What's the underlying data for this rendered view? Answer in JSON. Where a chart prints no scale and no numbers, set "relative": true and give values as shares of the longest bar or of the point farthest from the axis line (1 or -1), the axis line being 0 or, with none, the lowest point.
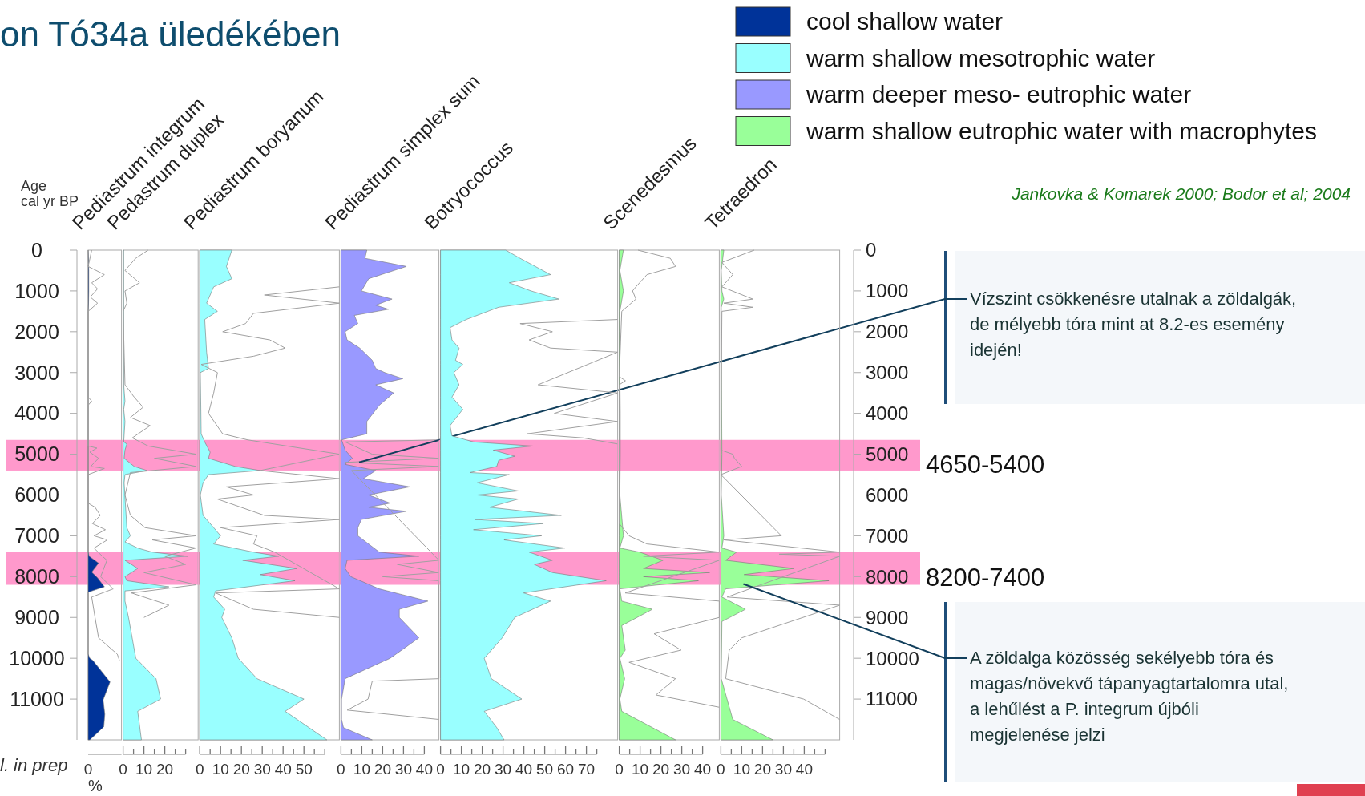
{
  "chart_data": [
    {
      "type": "area",
      "orientation": "horizontal",
      "title": "Pediastrum integrum",
      "ylabel": "Age cal yr BP",
      "xlabel": "%",
      "legend": "top right",
      "ylim": [
        12000,
        0
      ],
      "yticks": [
        0,
        1000,
        2000,
        3000,
        4000,
        5000,
        6000,
        7000,
        8000,
        9000,
        10000,
        11000
      ],
      "relative": true,
      "annotations": [
        "on Tó34a üledékében",
        "l. in prep",
        "Jankovka & Komarek 2000; Bodor et al; 2004",
        "0"
      ],
      "bands": [
        {
          "axis": "y",
          "from": 4650,
          "to": 5400,
          "color": "#ff99cc"
        },
        {
          "axis": "y",
          "from": 7400,
          "to": 8200,
          "color": "#ff99cc"
        }
      ],
      "series": [
        {
          "name": "cool shallow water",
          "color": "#003399",
          "x": [
            0,
            500,
            1000,
            1300,
            1500,
            7400,
            7500,
            7670,
            7890,
            8030,
            8250,
            8380,
            9900,
            10000,
            10050,
            10580,
            11020,
            11370,
            11680,
            12000
          ],
          "values": [
            0,
            0.02,
            0.02,
            0.013,
            0,
            0,
            0.033,
            0.333,
            0.113,
            0.3,
            0.52,
            0,
            0,
            0.053,
            0.147,
            0.7,
            0.48,
            0.533,
            0.5,
            0.053
          ]
        },
        {
          "type": "line",
          "color": "#a0a0a0",
          "x": [
            0,
            400,
            600,
            800,
            950,
            1150,
            1300,
            1500,
            3600,
            3700,
            3800,
            4800,
            4850,
            4950,
            5100,
            5300,
            5350,
            5500,
            6200,
            6300,
            6500,
            6700,
            6850,
            7000,
            7100,
            7300,
            7450,
            7600,
            8000,
            8300,
            8500,
            9000,
            9500,
            9900,
            10050
          ],
          "values": [
            0.113,
            0,
            0.52,
            0.113,
            0.3,
            0.067,
            0.3,
            0,
            0,
            0.113,
            0,
            0,
            0.28,
            0.053,
            0.333,
            0.08,
            0.52,
            0,
            0,
            0.22,
            0.387,
            0.133,
            0.553,
            0.187,
            0.613,
            0.187,
            0.387,
            0.6,
            0.4,
            0.8,
            0.113,
            0.22,
            0.333,
            0.933,
            1
          ]
        }
      ]
    },
    {
      "type": "area",
      "orientation": "horizontal",
      "title": "Pedastrum duplex",
      "tick_labels": "x",
      "ylim": [
        12000,
        0
      ],
      "xlim": [
        0,
        36
      ],
      "xticks": [
        0,
        {
          "value": 5,
          "label": null
        },
        10,
        {
          "value": 15,
          "label": null
        },
        20,
        {
          "value": 25,
          "label": null
        },
        {
          "value": 30,
          "label": null
        }
      ],
      "bands": [
        {
          "axis": "y",
          "from": 4650,
          "to": 5400,
          "color": "#ff99cc"
        },
        {
          "axis": "y",
          "from": 7400,
          "to": 8200,
          "color": "#ff99cc"
        }
      ],
      "series": [
        {
          "name": "warm shallow mesotrophic water",
          "color": "#99ffff",
          "x": [
            0,
            3300,
            3700,
            3900,
            4200,
            4700,
            4750,
            4900,
            5100,
            5300,
            5400,
            5500,
            5700,
            6800,
            7000,
            7150,
            7300,
            7400,
            7500,
            7600,
            7800,
            8000,
            8100,
            8250,
            8350,
            8600,
            9000,
            10000,
            10500,
            11000,
            11300,
            12000
          ],
          "values": [
            0.3,
            0.3,
            0.9,
            0.3,
            0.9,
            0.3,
            1.8,
            0.9,
            0.5,
            5.3,
            11.4,
            0.9,
            0.5,
            1.8,
            3.5,
            0.9,
            7,
            14,
            31,
            0.9,
            7,
            0.9,
            1.8,
            22,
            0.9,
            0.9,
            2.6,
            6.1,
            15.8,
            18,
            7,
            8.8
          ]
        },
        {
          "type": "line",
          "color": "#a0a0a0",
          "x": [
            0,
            200,
            500,
            800,
            1000,
            1300,
            1500,
            3300,
            3600,
            3850,
            4100,
            4300,
            4600,
            4800,
            5000,
            5100,
            5300,
            5450,
            6000,
            6500,
            6800,
            7000,
            7100,
            7300,
            7500,
            7700,
            7900,
            8200,
            8400,
            8700,
            9000
          ],
          "values": [
            12,
            6,
            0.9,
            7.9,
            0.9,
            1.8,
            0,
            0.9,
            5.3,
            9.6,
            3.5,
            13,
            4.4,
            12,
            35,
            15,
            35,
            3.5,
            0.9,
            3.5,
            10.5,
            35,
            14,
            35,
            20,
            30,
            10,
            35,
            4,
            22,
            10
          ]
        }
      ]
    },
    {
      "type": "area",
      "orientation": "horizontal",
      "title": "Pediastrum boryanum",
      "tick_labels": "x",
      "ylim": [
        12000,
        0
      ],
      "xlim": [
        0,
        67
      ],
      "xticks": [
        0,
        {
          "value": 5,
          "label": null
        },
        10,
        {
          "value": 15,
          "label": null
        },
        20,
        {
          "value": 25,
          "label": null
        },
        30,
        {
          "value": 35,
          "label": null
        },
        40,
        {
          "value": 45,
          "label": null
        },
        50,
        {
          "value": 55,
          "label": null
        },
        {
          "value": 60,
          "label": null
        }
      ],
      "bands": [
        {
          "axis": "y",
          "from": 4650,
          "to": 5400,
          "color": "#ff99cc"
        },
        {
          "axis": "y",
          "from": 7400,
          "to": 8200,
          "color": "#ff99cc"
        }
      ],
      "series": [
        {
          "color": "#99ffff",
          "x": [
            0,
            400,
            700,
            900,
            1300,
            1500,
            1700,
            2500,
            2900,
            3000,
            4500,
            4700,
            4950,
            5100,
            5300,
            5400,
            5500,
            5700,
            6000,
            6500,
            6800,
            7000,
            7200,
            7400,
            7500,
            7600,
            7800,
            7950,
            8100,
            8350,
            8500,
            8800,
            9000,
            9500,
            10000,
            10500,
            11000,
            11300,
            12000
          ],
          "values": [
            15.4,
            12.8,
            15.4,
            6.7,
            3.3,
            8.5,
            2.4,
            3.3,
            4.2,
            0.3,
            0.7,
            2.4,
            5,
            4.2,
            17,
            29,
            4.2,
            1.6,
            0.3,
            1.6,
            6.7,
            10,
            6.7,
            25.8,
            37.9,
            20.6,
            46.5,
            29,
            45.7,
            7.6,
            6.7,
            12,
            10.6,
            15.4,
            18.5,
            27.5,
            50,
            41,
            61
          ]
        },
        {
          "type": "line",
          "color": "#a0a0a0",
          "x": [
            900,
            1100,
            1300,
            1550,
            1800,
            2000,
            2200,
            2400,
            2600,
            2800,
            3000,
            3500,
            4000,
            4500,
            4650,
            5000,
            5400,
            5600,
            5800,
            6000,
            6100,
            6500,
            6600,
            6800,
            7000,
            7200,
            7400,
            8300,
            8400,
            8800,
            9000
          ],
          "values": [
            67,
            31,
            67,
            25.8,
            22,
            11,
            33.6,
            41,
            25.8,
            0.7,
            8.5,
            6.7,
            4.2,
            11,
            23,
            67,
            29,
            67,
            12.8,
            25.8,
            8.5,
            31,
            67,
            10,
            27.5,
            25.8,
            36,
            67,
            7.6,
            25.8,
            67
          ]
        }
      ]
    },
    {
      "type": "area",
      "orientation": "horizontal",
      "title": "Pediastrum simplex sum",
      "tick_labels": "x",
      "ylim": [
        12000,
        0
      ],
      "xlim": [
        0,
        47
      ],
      "xticks": [
        0,
        {
          "value": 5,
          "label": null
        },
        10,
        {
          "value": 15,
          "label": null
        },
        20,
        {
          "value": 25,
          "label": null
        },
        30,
        {
          "value": 35,
          "label": null
        },
        40
      ],
      "annotations": [
        {
          "text": "Vízszint csökkenésre utalnak a zöldalgák, de mélyebb tóra mint at 8.2-es esemény idején!",
          "x": 8.7,
          "y": 5200
        }
      ],
      "bands": [
        {
          "axis": "y",
          "from": 4650,
          "to": 5400,
          "color": "#ff99cc"
        },
        {
          "axis": "y",
          "from": 7400,
          "to": 8200,
          "color": "#ff99cc"
        }
      ],
      "series": [
        {
          "name": "warm deeper meso- eutrophic water",
          "color": "#9999ff",
          "x": [
            0,
            200,
            400,
            700,
            1000,
            1200,
            1350,
            1450,
            1600,
            1800,
            2000,
            2200,
            2400,
            2700,
            2900,
            3000,
            3150,
            3300,
            3500,
            3800,
            4200,
            4500,
            4650,
            4900,
            5100,
            5250,
            5400,
            5600,
            5800,
            6000,
            6200,
            6300,
            6400,
            6600,
            6800,
            7000,
            7400,
            7500,
            7600,
            7800,
            8000,
            8300,
            8600,
            8800,
            9000,
            9500,
            10000,
            10500,
            11000,
            11500,
            11700,
            12000
          ],
          "values": [
            12.4,
            11.5,
            31.4,
            13.3,
            9.8,
            24.5,
            16.7,
            22.8,
            6.4,
            8.1,
            2,
            2.9,
            9,
            15,
            16.7,
            21,
            29.7,
            16.7,
            25.3,
            18.4,
            12.4,
            12.4,
            0.3,
            2,
            5.5,
            2,
            16.7,
            10.7,
            33,
            13.3,
            23.6,
            13.3,
            31.4,
            9.8,
            8.1,
            8.1,
            18.4,
            37.4,
            2.9,
            2,
            4.7,
            18.4,
            41.7,
            28,
            28,
            37.4,
            23.6,
            2,
            0.3,
            0.3,
            1.2,
            15
          ]
        },
        {
          "type": "line",
          "color": "#a0a0a0",
          "x": [
            4650,
            4700,
            5000,
            5100,
            5200,
            5300,
            5400,
            7600,
            7700,
            7900,
            8000,
            8100,
            10500,
            10560,
            11000,
            11270,
            11500
          ],
          "values": [
            47,
            2,
            15,
            47,
            2,
            47,
            5,
            47,
            27,
            47,
            20,
            47,
            47,
            15,
            13,
            3,
            47
          ]
        }
      ]
    },
    {
      "type": "area",
      "orientation": "horizontal",
      "title": "Botryococcus",
      "tick_labels": "x",
      "ylim": [
        12000,
        0
      ],
      "xlim": [
        0,
        85
      ],
      "xticks": [
        0,
        {
          "value": 5,
          "label": null
        },
        10,
        {
          "value": 15,
          "label": null
        },
        20,
        {
          "value": 25,
          "label": null
        },
        30,
        {
          "value": 35,
          "label": null
        },
        40,
        {
          "value": 45,
          "label": null
        },
        50,
        {
          "value": 55,
          "label": null
        },
        60,
        {
          "value": 65,
          "label": null
        },
        70,
        {
          "value": 75,
          "label": null
        }
      ],
      "bands": [
        {
          "axis": "y",
          "from": 4650,
          "to": 5400,
          "color": "#ff99cc"
        },
        {
          "axis": "y",
          "from": 7400,
          "to": 8200,
          "color": "#ff99cc"
        }
      ],
      "series": [
        {
          "color": "#99ffff",
          "x": [
            0,
            200,
            600,
            800,
            1000,
            1200,
            1400,
            1700,
            1900,
            2200,
            2400,
            2700,
            2800,
            3000,
            3300,
            3600,
            3900,
            4300,
            4550,
            4700,
            4800,
            4900,
            5050,
            5150,
            5300,
            5450,
            5500,
            5700,
            5900,
            6000,
            6100,
            6300,
            6500,
            6600,
            6700,
            6850,
            7000,
            7100,
            7300,
            7400,
            7600,
            7700,
            7900,
            8100,
            8400,
            8600,
            9000,
            9500,
            10000,
            10500,
            11000,
            11300,
            11700,
            12000
          ],
          "values": [
            31.3,
            38.2,
            52.8,
            33,
            43.4,
            56.8,
            27.9,
            12.4,
            4.6,
            5.5,
            8.9,
            7.2,
            10.7,
            6.4,
            8.9,
            5.5,
            10.7,
            4.6,
            5.5,
            15.8,
            44.2,
            25.3,
            35.6,
            27.9,
            27,
            14.1,
            33,
            17.6,
            37.3,
            17.6,
            37.3,
            23.6,
            58,
            16.7,
            49.4,
            15.8,
            48.5,
            30.5,
            59.7,
            42.5,
            53.7,
            45,
            53.7,
            79.5,
            39.9,
            52.8,
            35.6,
            29.6,
            21,
            24.4,
            39,
            21,
            27,
            30.5
          ]
        },
        {
          "type": "line",
          "color": "#a0a0a0",
          "x": [
            1700,
            1800,
            2000,
            2200,
            2400,
            2500,
            3300,
            3500,
            4000,
            4200,
            4500,
            4600,
            4750
          ],
          "values": [
            85,
            38.2,
            53.7,
            42.5,
            52.8,
            85,
            46.8,
            85,
            54.6,
            85,
            41.7,
            68.3,
            85
          ]
        }
      ]
    },
    {
      "type": "area",
      "orientation": "horizontal",
      "title": "Scenedesmus",
      "tick_labels": "x",
      "ylim": [
        12000,
        0
      ],
      "xlim": [
        0,
        48
      ],
      "xticks": [
        0,
        {
          "value": 5,
          "label": null
        },
        10,
        {
          "value": 15,
          "label": null
        },
        20,
        {
          "value": 25,
          "label": null
        },
        30,
        {
          "value": 35,
          "label": null
        },
        40
      ],
      "bands": [
        {
          "axis": "y",
          "from": 4650,
          "to": 5400,
          "color": "#ff99cc"
        },
        {
          "axis": "y",
          "from": 7400,
          "to": 8200,
          "color": "#ff99cc"
        }
      ],
      "series": [
        {
          "name": "warm shallow eutrophic water with macrophytes",
          "color": "#99ff99",
          "x": [
            0,
            500,
            1000,
            1500,
            2000,
            3000,
            4000,
            5000,
            6000,
            7000,
            7300,
            7400,
            7600,
            7800,
            7900,
            8000,
            8100,
            8300,
            8600,
            8800,
            9200,
            9800,
            10000,
            10500,
            11000,
            11300,
            12000
          ],
          "values": [
            2,
            0.3,
            2,
            0.3,
            0.3,
            0.3,
            0.5,
            0.5,
            0.3,
            2,
            0.3,
            9.8,
            21,
            11.6,
            43.4,
            11.6,
            38,
            0.3,
            1.2,
            15.9,
            1.2,
            2.9,
            0.3,
            2.6,
            0.3,
            1.2,
            27
          ]
        },
        {
          "type": "line",
          "color": "#a0a0a0",
          "x": [
            0,
            200,
            400,
            600,
            900,
            1000,
            1200,
            1500,
            3100,
            3200,
            3300,
            6700,
            7000,
            7200,
            7400,
            7500,
            7600,
            8400,
            8600,
            9000,
            9400,
            9800,
            10100,
            10500,
            10900,
            11200
          ],
          "values": [
            9,
            24.5,
            27,
            13.3,
            8,
            6.4,
            8,
            1.2,
            0,
            3,
            0,
            0,
            4.7,
            13.3,
            48,
            11.6,
            48,
            2.9,
            48,
            48,
            16.7,
            29.7,
            4.7,
            27,
            17.6,
            48
          ]
        }
      ]
    },
    {
      "type": "area",
      "orientation": "horizontal",
      "title": "Tetraedron",
      "ylim": [
        12000,
        0
      ],
      "yticks": [
        0,
        1000,
        2000,
        3000,
        4000,
        5000,
        6000,
        7000,
        8000,
        9000,
        10000,
        11000
      ],
      "xlim": [
        0,
        57
      ],
      "xticks": [
        0,
        {
          "value": 5,
          "label": null
        },
        10,
        {
          "value": 15,
          "label": null
        },
        20,
        {
          "value": 25,
          "label": null
        },
        30,
        {
          "value": 35,
          "label": null
        },
        40,
        {
          "value": 45,
          "label": null
        },
        {
          "value": 50,
          "label": null
        }
      ],
      "annotations": [
        {
          "text": "A zöldalga közösség sekélyebb tóra és magas/növekvő tápanyagtartalomra utal, a lehűlést a P. integrum újbóli megjelenése jelzi",
          "x": 10.8,
          "y": 8180
        }
      ],
      "bands": [
        {
          "axis": "y",
          "from": 4650,
          "to": 5400,
          "color": "#ff99cc",
          "label": "4650-5400"
        },
        {
          "axis": "y",
          "from": 7400,
          "to": 8200,
          "color": "#ff99cc",
          "label": "8200-7400"
        }
      ],
      "series": [
        {
          "color": "#99ff99",
          "x": [
            0,
            500,
            1000,
            1200,
            1400,
            2000,
            5000,
            6000,
            7000,
            7300,
            7400,
            7600,
            7800,
            7950,
            8100,
            8300,
            8500,
            8800,
            9100,
            10500,
            11500,
            12000
          ],
          "values": [
            1.4,
            0.2,
            0.5,
            1.4,
            0.2,
            0.2,
            0.5,
            0.2,
            1.4,
            0.5,
            7.5,
            2.3,
            35,
            11.1,
            51.8,
            2.3,
            0.5,
            11.8,
            0.5,
            0.2,
            5.7,
            25
          ]
        },
        {
          "type": "line",
          "color": "#a0a0a0",
          "x": [
            0,
            300,
            600,
            900,
            1200,
            1300,
            1400,
            1500,
            4900,
            5000,
            5100,
            5300,
            5500,
            7000,
            7100,
            7400,
            7450,
            7500,
            8500,
            8700,
            9500,
            9800,
            10500,
            11000,
            11500
          ],
          "values": [
            16,
            0.5,
            5.7,
            0.5,
            15.3,
            1.4,
            15.3,
            0.5,
            0,
            5.7,
            6.5,
            10,
            0,
            29,
            1.4,
            57,
            28,
            57,
            3,
            57,
            10,
            4,
            2.3,
            39.7,
            57
          ]
        }
      ]
    }
  ]
}
